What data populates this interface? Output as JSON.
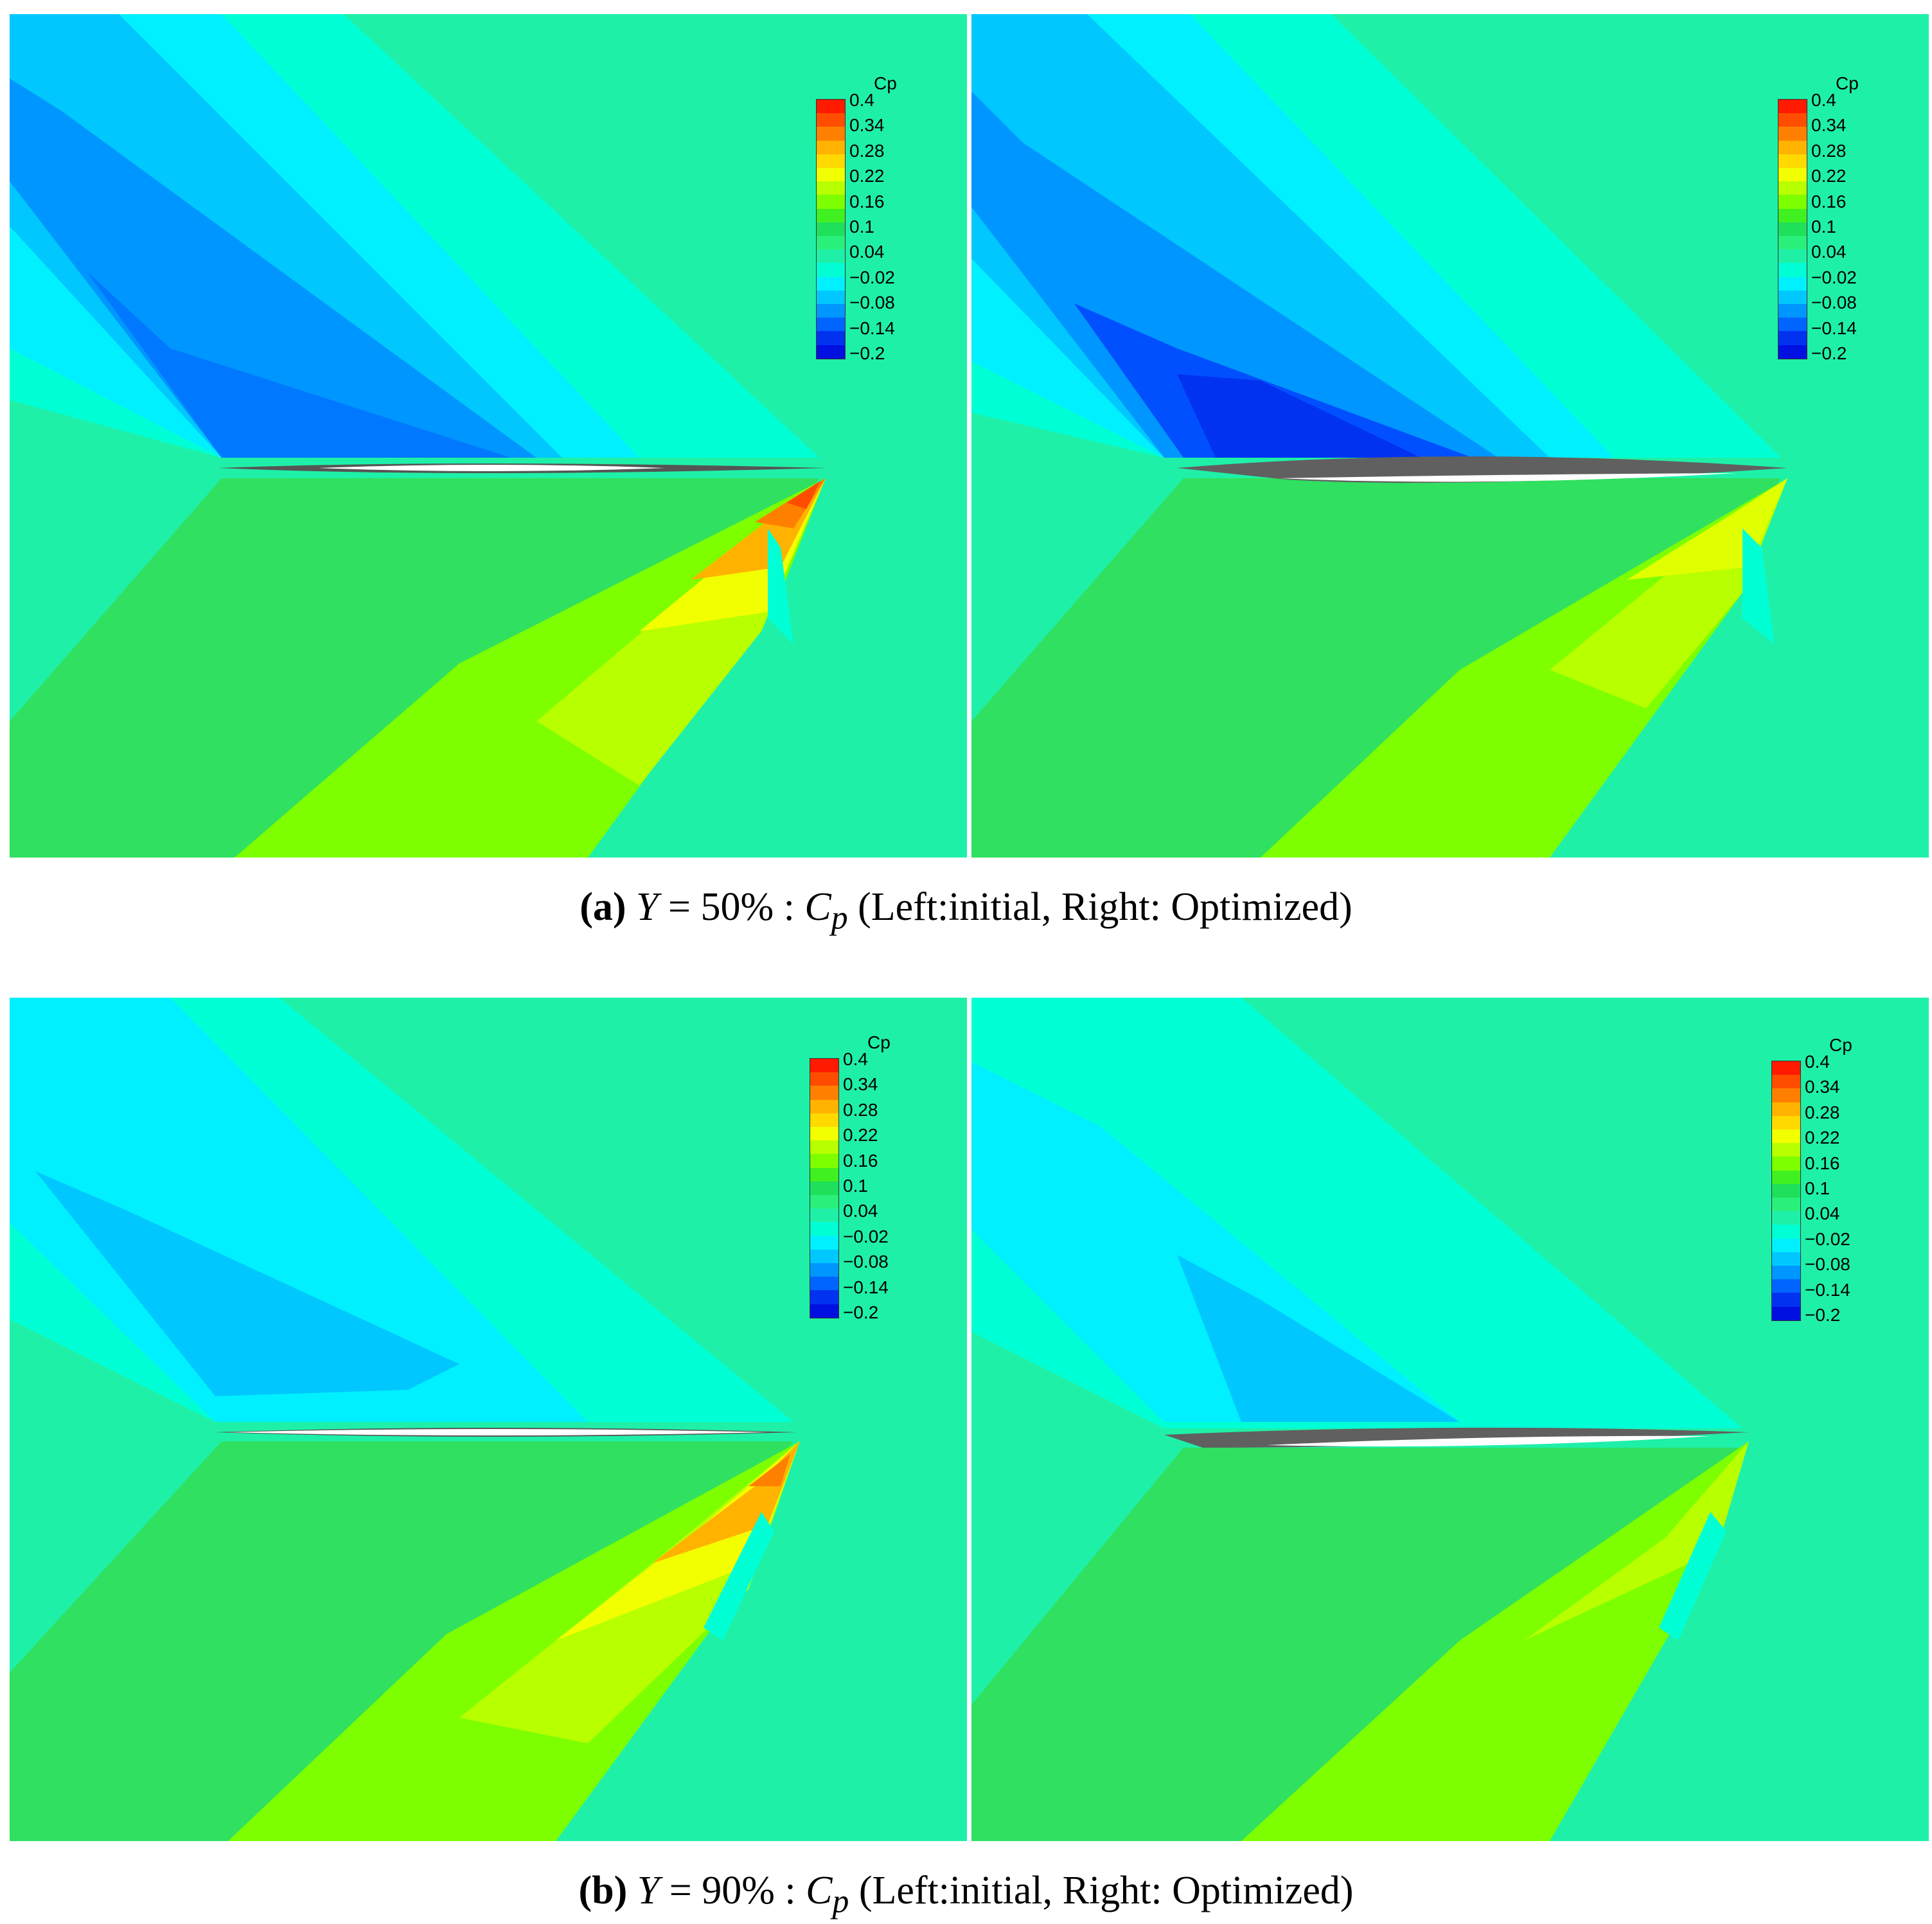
{
  "colorbar": {
    "title": "Cp",
    "ticks": [
      "0.4",
      "0.34",
      "0.28",
      "0.22",
      "0.16",
      "0.1",
      "0.04",
      "−0.02",
      "−0.08",
      "−0.14",
      "−0.2"
    ],
    "band_colors": [
      "#ff1a00",
      "#ff4d00",
      "#ff8000",
      "#ffb300",
      "#ffd900",
      "#f2ff00",
      "#b8ff00",
      "#7dff00",
      "#40f020",
      "#1fe05a",
      "#28f07a",
      "#1ff0a8",
      "#00ffd4",
      "#00f0ff",
      "#00c8ff",
      "#0096ff",
      "#0064ff",
      "#0032f0",
      "#0010e0"
    ]
  },
  "panels": [
    {
      "id": "a-left",
      "label": "initial"
    },
    {
      "id": "a-right",
      "label": "Optimized"
    },
    {
      "id": "b-left",
      "label": "initial"
    },
    {
      "id": "b-right",
      "label": "Optimized"
    }
  ],
  "captions": {
    "a": {
      "letter": "(a)",
      "lhs": "Y",
      "eq": " = 50% : ",
      "var": "C",
      "sub": "p",
      "rest": " (Left:initial, Right: Optimized)"
    },
    "b": {
      "letter": "(b)",
      "lhs": "Y",
      "eq": " = 90% : ",
      "var": "C",
      "sub": "p",
      "rest": " (Left:initial, Right: Optimized)"
    }
  }
}
